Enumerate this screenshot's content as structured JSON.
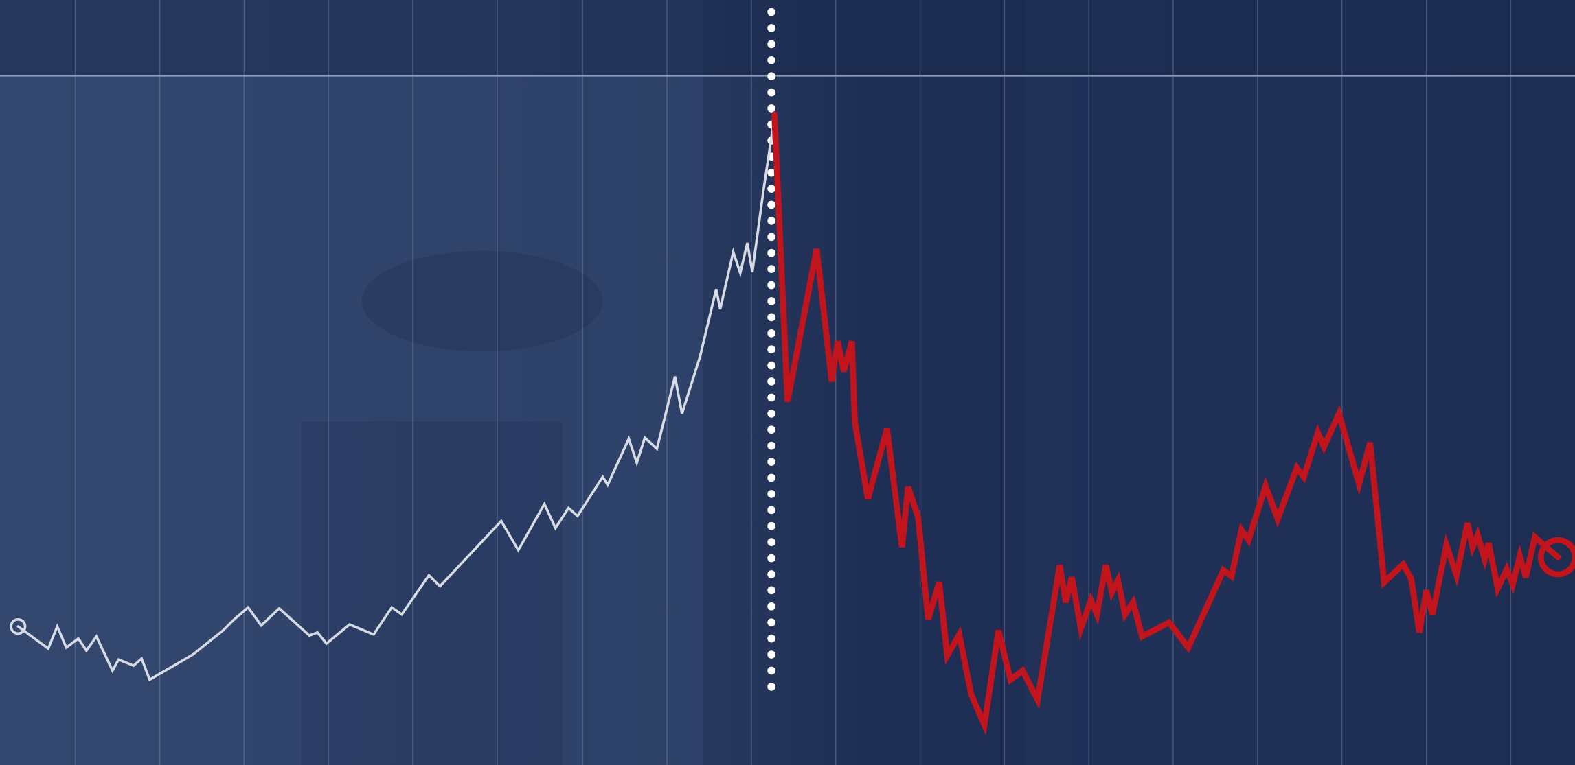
{
  "chart_data": {
    "type": "line",
    "xlim": [
      0,
      1568
    ],
    "ylim": [
      0,
      762
    ],
    "xticks": [
      75,
      159,
      243,
      327,
      411,
      495,
      580,
      664,
      748,
      832,
      916,
      1000,
      1084,
      1168,
      1252,
      1336,
      1420,
      1504
    ],
    "grid": true,
    "marker_x": 768,
    "series": [
      {
        "color": "#d7dbe4",
        "x": [
          18,
          48,
          57,
          66,
          78,
          86,
          96,
          112,
          118,
          133,
          141,
          149,
          192,
          222,
          232,
          247,
          260,
          278,
          308,
          316,
          325,
          348,
          372,
          390,
          400,
          427,
          438,
          499,
          516,
          542,
          553,
          566,
          575,
          600,
          605,
          626,
          634,
          642,
          654,
          672,
          679,
          697,
          713,
          717,
          730,
          737,
          744,
          749,
          760,
          771
        ],
        "values": [
          138,
          116,
          138,
          117,
          126,
          114,
          128,
          94,
          105,
          99,
          106,
          85,
          110,
          134,
          144,
          157,
          139,
          156,
          129,
          132,
          121,
          140,
          130,
          157,
          150,
          189,
          178,
          243,
          214,
          260,
          236,
          256,
          248,
          287,
          279,
          325,
          301,
          326,
          315,
          387,
          350,
          407,
          474,
          454,
          511,
          490,
          520,
          491,
          572,
          645
        ]
      },
      {
        "color": "#c2141c",
        "x": [
          771,
          784,
          813,
          828,
          834,
          840,
          848,
          851,
          864,
          883,
          898,
          904,
          914,
          924,
          935,
          943,
          955,
          967,
          980,
          994,
          1006,
          1018,
          1033,
          1055,
          1061,
          1067,
          1076,
          1086,
          1092,
          1101,
          1107,
          1113,
          1120,
          1128,
          1137,
          1164,
          1183,
          1218,
          1226,
          1236,
          1243,
          1260,
          1272,
          1291,
          1298,
          1312,
          1318,
          1333,
          1353,
          1364,
          1378,
          1397,
          1405,
          1413,
          1420,
          1426,
          1440,
          1450,
          1461,
          1466,
          1471,
          1478,
          1482,
          1491,
          1500,
          1506,
          1513,
          1519,
          1528,
          1551
        ],
        "values": [
          648,
          362,
          514,
          382,
          422,
          392,
          422,
          342,
          265,
          335,
          217,
          277,
          247,
          145,
          182,
          109,
          130,
          70,
          40,
          134,
          85,
          94,
          65,
          199,
          162,
          187,
          136,
          164,
          150,
          199,
          172,
          184,
          150,
          162,
          128,
          142,
          117,
          194,
          188,
          234,
          224,
          278,
          245,
          296,
          287,
          331,
          317,
          350,
          280,
          321,
          182,
          200,
          185,
          132,
          174,
          150,
          219,
          189,
          241,
          217,
          229,
          205,
          221,
          176,
          195,
          180,
          208,
          187,
          227,
          207
        ]
      }
    ]
  }
}
